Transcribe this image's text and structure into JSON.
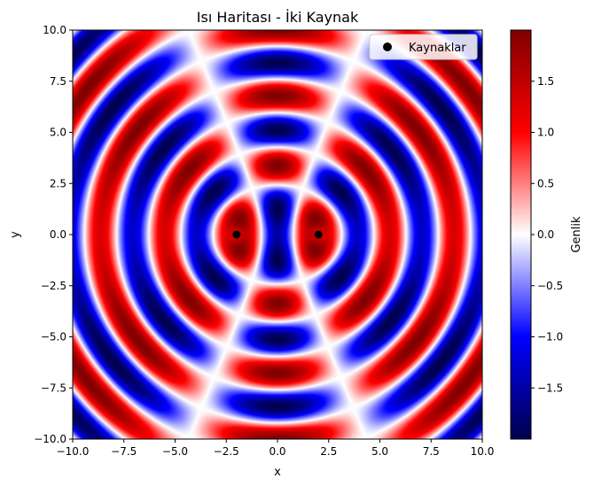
{
  "chart_data": {
    "type": "heatmap",
    "title": "Isı Haritası - İki Kaynak",
    "xlabel": "x",
    "ylabel": "y",
    "xlim": [
      -10,
      10
    ],
    "ylim": [
      -10,
      10
    ],
    "xticks": [
      -10,
      -7.5,
      -5,
      -2.5,
      0,
      2.5,
      5,
      7.5,
      10
    ],
    "yticks": [
      -10,
      -7.5,
      -5,
      -2.5,
      0,
      2.5,
      5,
      7.5,
      10
    ],
    "xtick_labels": [
      "−10.0",
      "−7.5",
      "−5.0",
      "−2.5",
      "0.0",
      "2.5",
      "5.0",
      "7.5",
      "10.0"
    ],
    "ytick_labels": [
      "−10.0",
      "−7.5",
      "−5.0",
      "−2.5",
      "0.0",
      "2.5",
      "5.0",
      "7.5",
      "10.0"
    ],
    "colormap": "seismic",
    "colormap_stops": [
      "#00004d",
      "#0000ff",
      "#ffffff",
      "#ff0000",
      "#800000"
    ],
    "field": {
      "formula": "sin(k*r1) + sin(k*r2)",
      "r1_source": [
        -2,
        0
      ],
      "r2_source": [
        2,
        0
      ],
      "k": 2,
      "value_range": [
        -2,
        2
      ]
    },
    "series": [
      {
        "name": "Kaynaklar",
        "type": "scatter",
        "color": "#000000",
        "points": [
          [
            -2,
            0
          ],
          [
            2,
            0
          ]
        ]
      }
    ],
    "legend": {
      "placement": "top-right",
      "entries": [
        "Kaynaklar"
      ]
    },
    "colorbar": {
      "label": "Genlik",
      "range": [
        -2,
        2
      ],
      "ticks": [
        -1.5,
        -1.0,
        -0.5,
        0.0,
        0.5,
        1.0,
        1.5
      ],
      "tick_labels": [
        "−1.5",
        "−1.0",
        "−0.5",
        "0.0",
        "0.5",
        "1.0",
        "1.5"
      ]
    },
    "grid": false
  }
}
